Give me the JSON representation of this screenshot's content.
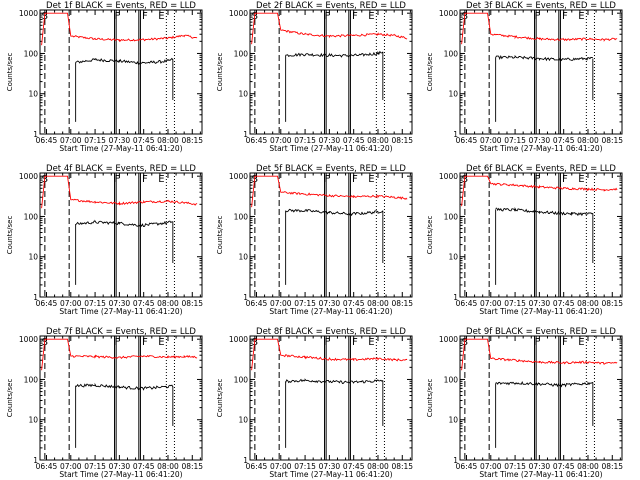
{
  "figure": {
    "ylabel": "Counts/sec",
    "xlabel": "Start Time (27-May-11 06:41:20)"
  },
  "chart_data": [
    {
      "type": "line",
      "title": "Det 1f BLACK = Events, RED = LLD",
      "xlabel": "Start Time (27-May-11 06:41:20)",
      "ylabel": "Counts/sec",
      "x_ticks": [
        "06:45",
        "07:00",
        "07:15",
        "07:30",
        "07:45",
        "08:00",
        "08:15"
      ],
      "y_ticks": [
        "1",
        "10",
        "100",
        "1000"
      ],
      "xlim": [
        "06:41",
        "08:21"
      ],
      "ylim": [
        1,
        1200
      ],
      "yscale": "log",
      "annotations": [
        "S",
        "F",
        "E"
      ],
      "series": [
        {
          "color": "#ff0000",
          "points": [
            [
              "06:42",
              160
            ],
            [
              "06:44",
              1000
            ],
            [
              "06:58",
              1000
            ],
            [
              "07:00",
              270
            ],
            [
              "07:15",
              230
            ],
            [
              "07:30",
              215
            ],
            [
              "07:45",
              220
            ],
            [
              "08:00",
              240
            ],
            [
              "08:10",
              280
            ],
            [
              "08:18",
              240
            ]
          ]
        },
        {
          "color": "#000000",
          "points": [
            [
              "07:03",
              60
            ],
            [
              "07:15",
              70
            ],
            [
              "07:30",
              65
            ],
            [
              "07:43",
              58
            ],
            [
              "07:50",
              60
            ],
            [
              "08:00",
              65
            ],
            [
              "08:03",
              72
            ]
          ]
        }
      ]
    },
    {
      "type": "line",
      "title": "Det 2f BLACK = Events, RED = LLD",
      "xlabel": "Start Time (27-May-11 06:41:20)",
      "ylabel": "Counts/sec",
      "x_ticks": [
        "06:45",
        "07:00",
        "07:15",
        "07:30",
        "07:45",
        "08:00",
        "08:15"
      ],
      "y_ticks": [
        "1",
        "10",
        "100",
        "1000"
      ],
      "xlim": [
        "06:41",
        "08:21"
      ],
      "ylim": [
        1,
        1200
      ],
      "yscale": "log",
      "annotations": [
        "S",
        "F",
        "E"
      ],
      "series": [
        {
          "color": "#ff0000",
          "points": [
            [
              "06:42",
              170
            ],
            [
              "06:44",
              1000
            ],
            [
              "06:58",
              1000
            ],
            [
              "07:00",
              380
            ],
            [
              "07:15",
              300
            ],
            [
              "07:30",
              270
            ],
            [
              "07:45",
              280
            ],
            [
              "08:00",
              300
            ],
            [
              "08:10",
              280
            ],
            [
              "08:18",
              240
            ]
          ]
        },
        {
          "color": "#000000",
          "points": [
            [
              "07:03",
              90
            ],
            [
              "07:15",
              95
            ],
            [
              "07:30",
              90
            ],
            [
              "07:43",
              88
            ],
            [
              "07:50",
              92
            ],
            [
              "08:00",
              100
            ],
            [
              "08:03",
              110
            ]
          ]
        }
      ]
    },
    {
      "type": "line",
      "title": "Det 3f BLACK = Events, RED = LLD",
      "xlabel": "Start Time (27-May-11 06:41:20)",
      "ylabel": "Counts/sec",
      "x_ticks": [
        "06:45",
        "07:00",
        "07:15",
        "07:30",
        "07:45",
        "08:00",
        "08:15"
      ],
      "y_ticks": [
        "1",
        "10",
        "100",
        "1000"
      ],
      "xlim": [
        "06:41",
        "08:21"
      ],
      "ylim": [
        1,
        1200
      ],
      "yscale": "log",
      "annotations": [
        "S",
        "F",
        "E"
      ],
      "series": [
        {
          "color": "#ff0000",
          "points": [
            [
              "06:42",
              170
            ],
            [
              "06:44",
              1000
            ],
            [
              "06:58",
              1000
            ],
            [
              "07:00",
              300
            ],
            [
              "07:15",
              260
            ],
            [
              "07:30",
              230
            ],
            [
              "07:45",
              220
            ],
            [
              "08:00",
              230
            ],
            [
              "08:10",
              220
            ],
            [
              "08:18",
              230
            ]
          ]
        },
        {
          "color": "#000000",
          "points": [
            [
              "07:03",
              80
            ],
            [
              "07:15",
              80
            ],
            [
              "07:30",
              75
            ],
            [
              "07:43",
              70
            ],
            [
              "07:50",
              72
            ],
            [
              "08:00",
              75
            ],
            [
              "08:03",
              75
            ]
          ]
        }
      ]
    },
    {
      "type": "line",
      "title": "Det 4f BLACK = Events, RED = LLD",
      "xlabel": "Start Time (27-May-11 06:41:20)",
      "ylabel": "Counts/sec",
      "x_ticks": [
        "06:45",
        "07:00",
        "07:15",
        "07:30",
        "07:45",
        "08:00",
        "08:15"
      ],
      "y_ticks": [
        "1",
        "10",
        "100",
        "1000"
      ],
      "xlim": [
        "06:41",
        "08:21"
      ],
      "ylim": [
        1,
        1200
      ],
      "yscale": "log",
      "annotations": [
        "S",
        "F",
        "E"
      ],
      "series": [
        {
          "color": "#ff0000",
          "points": [
            [
              "06:42",
              160
            ],
            [
              "06:44",
              1000
            ],
            [
              "06:58",
              1000
            ],
            [
              "07:00",
              260
            ],
            [
              "07:15",
              230
            ],
            [
              "07:30",
              210
            ],
            [
              "07:45",
              230
            ],
            [
              "08:00",
              240
            ],
            [
              "08:10",
              220
            ],
            [
              "08:18",
              200
            ]
          ]
        },
        {
          "color": "#000000",
          "points": [
            [
              "07:03",
              65
            ],
            [
              "07:15",
              72
            ],
            [
              "07:30",
              68
            ],
            [
              "07:43",
              60
            ],
            [
              "07:50",
              64
            ],
            [
              "08:00",
              70
            ],
            [
              "08:03",
              75
            ]
          ]
        }
      ]
    },
    {
      "type": "line",
      "title": "Det 5f BLACK = Events, RED = LLD",
      "xlabel": "Start Time (27-May-11 06:41:20)",
      "ylabel": "Counts/sec",
      "x_ticks": [
        "06:45",
        "07:00",
        "07:15",
        "07:30",
        "07:45",
        "08:00",
        "08:15"
      ],
      "y_ticks": [
        "1",
        "10",
        "100",
        "1000"
      ],
      "xlim": [
        "06:41",
        "08:21"
      ],
      "ylim": [
        1,
        1200
      ],
      "yscale": "log",
      "annotations": [
        "S",
        "F",
        "E"
      ],
      "series": [
        {
          "color": "#ff0000",
          "points": [
            [
              "06:42",
              170
            ],
            [
              "06:44",
              1000
            ],
            [
              "06:58",
              1000
            ],
            [
              "07:00",
              400
            ],
            [
              "07:15",
              360
            ],
            [
              "07:30",
              330
            ],
            [
              "07:45",
              310
            ],
            [
              "08:00",
              320
            ],
            [
              "08:10",
              300
            ],
            [
              "08:18",
              280
            ]
          ]
        },
        {
          "color": "#000000",
          "points": [
            [
              "07:03",
              140
            ],
            [
              "07:15",
              140
            ],
            [
              "07:30",
              125
            ],
            [
              "07:43",
              115
            ],
            [
              "07:50",
              120
            ],
            [
              "08:00",
              130
            ],
            [
              "08:03",
              140
            ]
          ]
        }
      ]
    },
    {
      "type": "line",
      "title": "Det 6f BLACK = Events, RED = LLD",
      "xlabel": "Start Time (27-May-11 06:41:20)",
      "ylabel": "Counts/sec",
      "x_ticks": [
        "06:45",
        "07:00",
        "07:15",
        "07:30",
        "07:45",
        "08:00",
        "08:15"
      ],
      "y_ticks": [
        "1",
        "10",
        "100",
        "1000"
      ],
      "xlim": [
        "06:41",
        "08:21"
      ],
      "ylim": [
        1,
        1200
      ],
      "yscale": "log",
      "annotations": [
        "S",
        "F",
        "E"
      ],
      "series": [
        {
          "color": "#ff0000",
          "points": [
            [
              "06:42",
              180
            ],
            [
              "06:44",
              1000
            ],
            [
              "06:58",
              1000
            ],
            [
              "07:00",
              650
            ],
            [
              "07:15",
              600
            ],
            [
              "07:30",
              540
            ],
            [
              "07:45",
              500
            ],
            [
              "08:00",
              480
            ],
            [
              "08:10",
              460
            ],
            [
              "08:18",
              480
            ]
          ]
        },
        {
          "color": "#000000",
          "points": [
            [
              "07:03",
              150
            ],
            [
              "07:15",
              145
            ],
            [
              "07:30",
              130
            ],
            [
              "07:43",
              120
            ],
            [
              "07:50",
              118
            ],
            [
              "08:00",
              115
            ],
            [
              "08:03",
              120
            ]
          ]
        }
      ]
    },
    {
      "type": "line",
      "title": "Det 7f BLACK = Events, RED = LLD",
      "xlabel": "Start Time (27-May-11 06:41:20)",
      "ylabel": "Counts/sec",
      "x_ticks": [
        "06:45",
        "07:00",
        "07:15",
        "07:30",
        "07:45",
        "08:00",
        "08:15"
      ],
      "y_ticks": [
        "1",
        "10",
        "100",
        "1000"
      ],
      "xlim": [
        "06:41",
        "08:21"
      ],
      "ylim": [
        1,
        1200
      ],
      "yscale": "log",
      "annotations": [
        "S",
        "F",
        "E"
      ],
      "series": [
        {
          "color": "#ff0000",
          "points": [
            [
              "06:42",
              170
            ],
            [
              "06:44",
              1000
            ],
            [
              "06:58",
              1000
            ],
            [
              "07:00",
              380
            ],
            [
              "07:15",
              370
            ],
            [
              "07:30",
              350
            ],
            [
              "07:45",
              380
            ],
            [
              "08:00",
              360
            ],
            [
              "08:10",
              370
            ],
            [
              "08:18",
              360
            ]
          ]
        },
        {
          "color": "#000000",
          "points": [
            [
              "07:03",
              70
            ],
            [
              "07:15",
              72
            ],
            [
              "07:30",
              65
            ],
            [
              "07:43",
              60
            ],
            [
              "07:50",
              62
            ],
            [
              "08:00",
              66
            ],
            [
              "08:03",
              68
            ]
          ]
        }
      ]
    },
    {
      "type": "line",
      "title": "Det 8f BLACK = Events, RED = LLD",
      "xlabel": "Start Time (27-May-11 06:41:20)",
      "ylabel": "Counts/sec",
      "x_ticks": [
        "06:45",
        "07:00",
        "07:15",
        "07:30",
        "07:45",
        "08:00",
        "08:15"
      ],
      "y_ticks": [
        "1",
        "10",
        "100",
        "1000"
      ],
      "xlim": [
        "06:41",
        "08:21"
      ],
      "ylim": [
        1,
        1200
      ],
      "yscale": "log",
      "annotations": [
        "S",
        "F",
        "E"
      ],
      "series": [
        {
          "color": "#ff0000",
          "points": [
            [
              "06:42",
              170
            ],
            [
              "06:44",
              1000
            ],
            [
              "06:58",
              1000
            ],
            [
              "07:00",
              400
            ],
            [
              "07:15",
              360
            ],
            [
              "07:30",
              320
            ],
            [
              "07:45",
              310
            ],
            [
              "08:00",
              330
            ],
            [
              "08:10",
              310
            ],
            [
              "08:18",
              300
            ]
          ]
        },
        {
          "color": "#000000",
          "points": [
            [
              "07:03",
              90
            ],
            [
              "07:15",
              95
            ],
            [
              "07:30",
              88
            ],
            [
              "07:43",
              85
            ],
            [
              "07:50",
              88
            ],
            [
              "08:00",
              92
            ],
            [
              "08:03",
              95
            ]
          ]
        }
      ]
    },
    {
      "type": "line",
      "title": "Det 9f BLACK = Events, RED = LLD",
      "xlabel": "Start Time (27-May-11 06:41:20)",
      "ylabel": "Counts/sec",
      "x_ticks": [
        "06:45",
        "07:00",
        "07:15",
        "07:30",
        "07:45",
        "08:00",
        "08:15"
      ],
      "y_ticks": [
        "1",
        "10",
        "100",
        "1000"
      ],
      "xlim": [
        "06:41",
        "08:21"
      ],
      "ylim": [
        1,
        1200
      ],
      "yscale": "log",
      "annotations": [
        "S",
        "F",
        "E"
      ],
      "series": [
        {
          "color": "#ff0000",
          "points": [
            [
              "06:42",
              170
            ],
            [
              "06:44",
              1000
            ],
            [
              "06:58",
              1000
            ],
            [
              "07:00",
              330
            ],
            [
              "07:15",
              300
            ],
            [
              "07:30",
              270
            ],
            [
              "07:45",
              260
            ],
            [
              "08:00",
              270
            ],
            [
              "08:10",
              250
            ],
            [
              "08:18",
              260
            ]
          ]
        },
        {
          "color": "#000000",
          "points": [
            [
              "07:03",
              80
            ],
            [
              "07:15",
              82
            ],
            [
              "07:30",
              78
            ],
            [
              "07:43",
              72
            ],
            [
              "07:50",
              75
            ],
            [
              "08:00",
              80
            ],
            [
              "08:03",
              85
            ]
          ]
        }
      ]
    }
  ]
}
